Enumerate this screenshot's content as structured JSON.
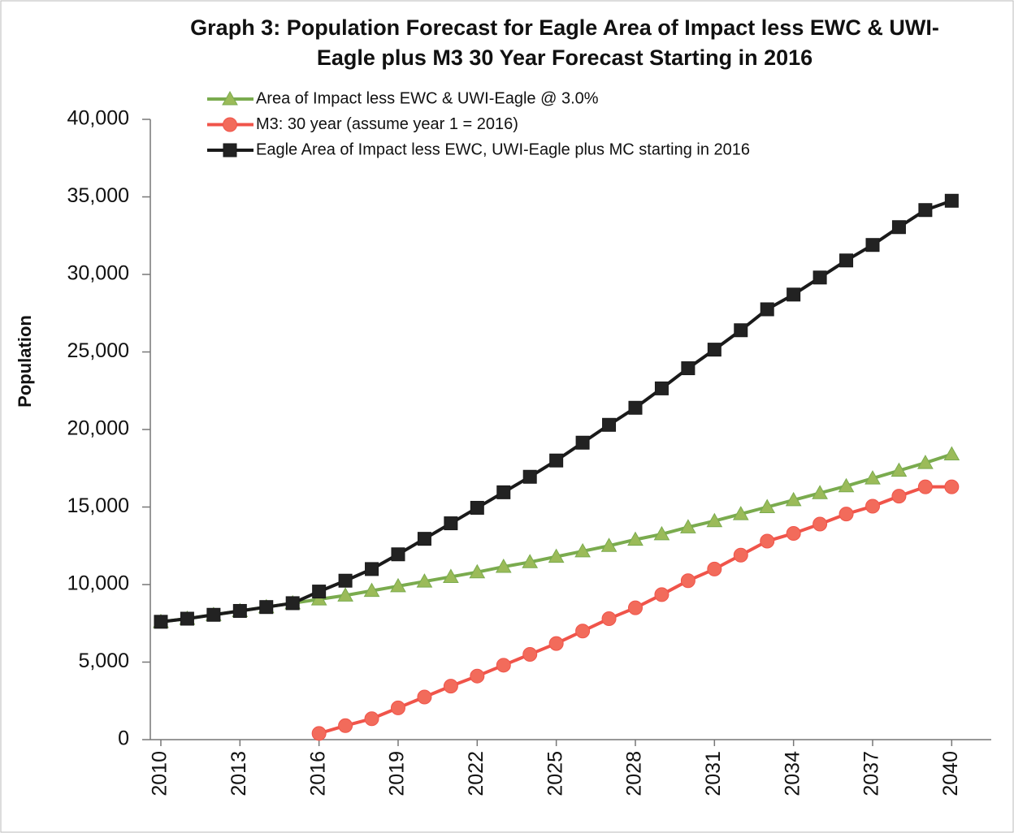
{
  "chart_data": {
    "type": "line",
    "title": [
      "Graph 3: Population Forecast for Eagle Area of Impact less EWC & UWI-",
      "Eagle plus M3 30 Year Forecast Starting in 2016"
    ],
    "y_label": "Population",
    "x": [
      2010,
      2011,
      2012,
      2013,
      2014,
      2015,
      2016,
      2017,
      2018,
      2019,
      2020,
      2021,
      2022,
      2023,
      2024,
      2025,
      2026,
      2027,
      2028,
      2029,
      2030,
      2031,
      2032,
      2033,
      2034,
      2035,
      2036,
      2037,
      2038,
      2039,
      2040
    ],
    "xlim": [
      2009.6,
      2041.5
    ],
    "xticks": [
      2010,
      2013,
      2016,
      2019,
      2022,
      2025,
      2028,
      2031,
      2034,
      2037,
      2040
    ],
    "ylim": [
      0,
      40000
    ],
    "yticks": [
      0,
      {
        "value": 5000,
        "label": "5,000"
      },
      {
        "value": 10000,
        "label": "10,000"
      },
      {
        "value": 15000,
        "label": "15,000"
      },
      {
        "value": 20000,
        "label": "20,000"
      },
      {
        "value": 25000,
        "label": "25,000"
      },
      {
        "value": 30000,
        "label": "30,000"
      },
      {
        "value": 35000,
        "label": "35,000"
      },
      {
        "value": 40000,
        "label": "40,000"
      }
    ],
    "series": [
      {
        "name": "Area of Impact less EWC & UWI-Eagle @ 3.0%",
        "color": "#7aab4e",
        "marker_color": "#9bbb59",
        "marker": "triangle",
        "values": [
          7600,
          7800,
          8050,
          8300,
          8550,
          8800,
          9050,
          9300,
          9600,
          9900,
          10200,
          10500,
          10800,
          11150,
          11450,
          11800,
          12150,
          12500,
          12900,
          13250,
          13700,
          14100,
          14550,
          15000,
          15450,
          15900,
          16350,
          16850,
          17350,
          17850,
          18400
        ]
      },
      {
        "name": "M3: 30 year (assume year 1 = 2016)",
        "color": "#f0544a",
        "marker_color": "#f26b5b",
        "marker": "circle",
        "values": [
          null,
          null,
          null,
          null,
          null,
          null,
          400,
          900,
          1350,
          2050,
          2750,
          3450,
          4100,
          4800,
          5500,
          6200,
          7000,
          7800,
          8500,
          9350,
          10250,
          11000,
          11900,
          12800,
          13300,
          13900,
          14550,
          15050,
          15700,
          16300,
          16300
        ]
      },
      {
        "name": "Eagle Area of Impact less EWC, UWI-Eagle plus MC starting in 2016",
        "color": "#1a1a1a",
        "marker_color": "#222222",
        "marker": "square",
        "values": [
          7600,
          7800,
          8050,
          8300,
          8550,
          8800,
          9550,
          10250,
          11000,
          11950,
          12950,
          13950,
          14950,
          15950,
          16950,
          18000,
          19150,
          20300,
          21400,
          22650,
          23950,
          25150,
          26400,
          27750,
          28700,
          29800,
          30900,
          31900,
          33050,
          34150,
          34750
        ]
      }
    ]
  }
}
